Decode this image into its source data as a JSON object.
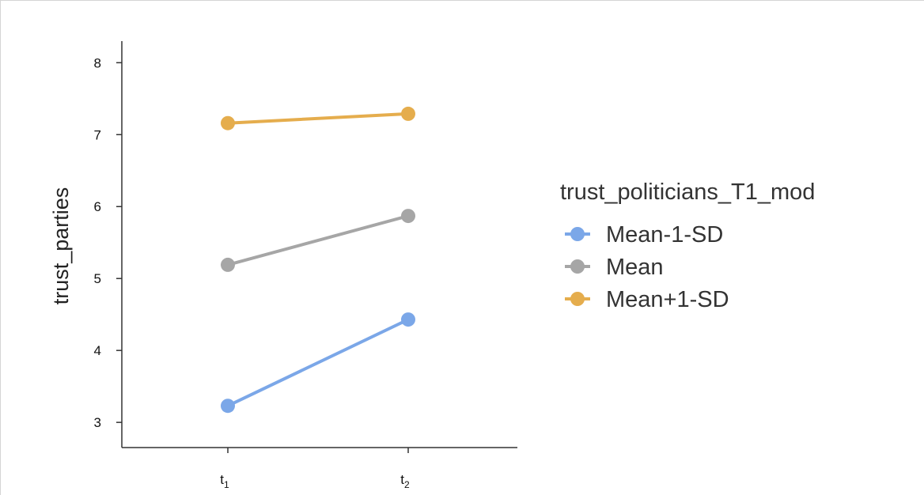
{
  "chart_data": {
    "type": "line",
    "categories": [
      "t1",
      "t2"
    ],
    "category_display": [
      {
        "base": "t",
        "sub": "1"
      },
      {
        "base": "t",
        "sub": "2"
      }
    ],
    "ylabel": "trust_parties",
    "xlabel": "",
    "ylim": [
      2.65,
      8.3
    ],
    "yticks": [
      3,
      4,
      5,
      6,
      7,
      8
    ],
    "legend": {
      "title": "trust_politicians_T1_mod",
      "position": "right"
    },
    "series": [
      {
        "name": "Mean-1-SD",
        "color": "#7ba7e8",
        "values": [
          3.23,
          4.43
        ]
      },
      {
        "name": "Mean",
        "color": "#a6a6a6",
        "values": [
          5.19,
          5.87
        ]
      },
      {
        "name": "Mean+1-SD",
        "color": "#e5ad4d",
        "values": [
          7.16,
          7.29
        ]
      }
    ],
    "grid": false
  }
}
